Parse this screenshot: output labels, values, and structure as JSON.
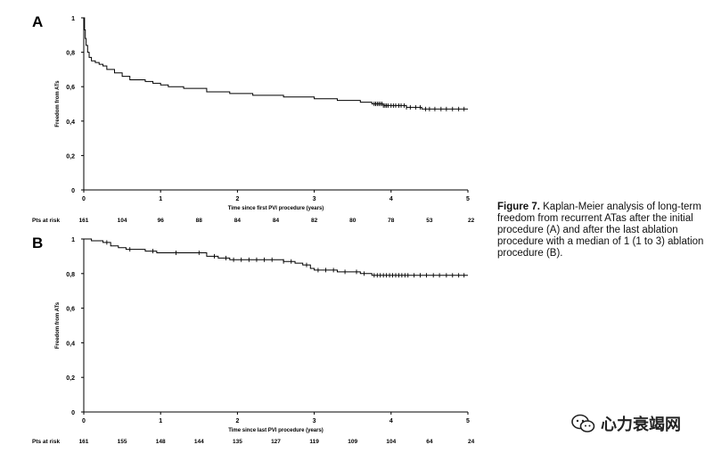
{
  "figure_caption": {
    "label": "Figure 7.",
    "text": " Kaplan-Meier analysis of long-term freedom from recurrent ATas after the initial procedure (A) and after the last ablation procedure with a median of 1 (1 to 3) ablation procedure (B)."
  },
  "watermark": {
    "text": "心力衰竭网",
    "icon": "wechat-icon"
  },
  "chart_data": [
    {
      "type": "line",
      "step": true,
      "panel_label": "A",
      "title": "",
      "xlabel": "Time since first PVI procedure (years)",
      "ylabel": "Freedom from ATs",
      "xlim": [
        0,
        5
      ],
      "ylim": [
        0,
        1
      ],
      "x_ticks": [
        "0",
        "1",
        "2",
        "3",
        "4",
        "5"
      ],
      "y_ticks": [
        "0",
        "0,2",
        "0,4",
        "0,6",
        "0,8",
        "1"
      ],
      "series": [
        {
          "name": "Freedom from ATs",
          "x": [
            0,
            0.01,
            0.02,
            0.03,
            0.05,
            0.07,
            0.1,
            0.15,
            0.2,
            0.25,
            0.3,
            0.4,
            0.5,
            0.6,
            0.8,
            0.9,
            1.0,
            1.1,
            1.3,
            1.6,
            1.9,
            2.2,
            2.6,
            3.0,
            3.3,
            3.6,
            3.75,
            3.9,
            4.05,
            4.2,
            4.4,
            4.7,
            5.0
          ],
          "y": [
            1,
            0.93,
            0.88,
            0.84,
            0.8,
            0.77,
            0.75,
            0.74,
            0.73,
            0.72,
            0.7,
            0.68,
            0.66,
            0.64,
            0.63,
            0.62,
            0.61,
            0.6,
            0.59,
            0.57,
            0.56,
            0.55,
            0.54,
            0.53,
            0.52,
            0.51,
            0.5,
            0.49,
            0.49,
            0.48,
            0.47,
            0.47,
            0.47
          ]
        }
      ],
      "censor_marks_x": [
        3.78,
        3.8,
        3.82,
        3.84,
        3.86,
        3.88,
        3.9,
        3.92,
        3.94,
        3.96,
        4.0,
        4.03,
        4.06,
        4.1,
        4.13,
        4.17,
        4.2,
        4.25,
        4.32,
        4.38,
        4.45,
        4.5,
        4.57,
        4.65,
        4.72,
        4.8,
        4.88,
        4.95
      ],
      "at_risk_label": "Pts at risk",
      "at_risk": [
        "161",
        "104",
        "96",
        "88",
        "84",
        "84",
        "82",
        "80",
        "78",
        "53",
        "22"
      ]
    },
    {
      "type": "line",
      "step": true,
      "panel_label": "B",
      "title": "",
      "xlabel": "Time since last PVI procedure (years)",
      "ylabel": "Freedom from ATs",
      "xlim": [
        0,
        5
      ],
      "ylim": [
        0,
        1
      ],
      "x_ticks": [
        "0",
        "1",
        "2",
        "3",
        "4",
        "5"
      ],
      "y_ticks": [
        "0",
        "0,2",
        "0,4",
        "0,6",
        "0,8",
        "1"
      ],
      "series": [
        {
          "name": "Freedom from ATs",
          "x": [
            0,
            0.1,
            0.25,
            0.35,
            0.45,
            0.55,
            0.8,
            0.95,
            1.1,
            1.4,
            1.6,
            1.75,
            1.9,
            2.5,
            2.6,
            2.75,
            2.85,
            2.95,
            3.0,
            3.3,
            3.5,
            3.6,
            3.75,
            4.0,
            5.0
          ],
          "y": [
            1,
            0.99,
            0.98,
            0.96,
            0.95,
            0.94,
            0.93,
            0.92,
            0.92,
            0.92,
            0.9,
            0.89,
            0.88,
            0.88,
            0.87,
            0.86,
            0.85,
            0.83,
            0.82,
            0.81,
            0.81,
            0.8,
            0.79,
            0.79,
            0.79
          ]
        }
      ],
      "censor_marks_x": [
        0.3,
        0.6,
        0.9,
        1.2,
        1.5,
        1.7,
        1.85,
        1.95,
        2.05,
        2.15,
        2.25,
        2.35,
        2.45,
        2.6,
        2.7,
        2.9,
        3.05,
        3.15,
        3.25,
        3.4,
        3.55,
        3.65,
        3.78,
        3.82,
        3.86,
        3.9,
        3.94,
        3.98,
        4.02,
        4.06,
        4.1,
        4.14,
        4.18,
        4.22,
        4.3,
        4.38,
        4.46,
        4.55,
        4.63,
        4.72,
        4.8,
        4.88,
        4.95
      ],
      "at_risk_label": "Pts at risk",
      "at_risk": [
        "161",
        "155",
        "148",
        "144",
        "135",
        "127",
        "119",
        "109",
        "104",
        "64",
        "24"
      ]
    }
  ]
}
